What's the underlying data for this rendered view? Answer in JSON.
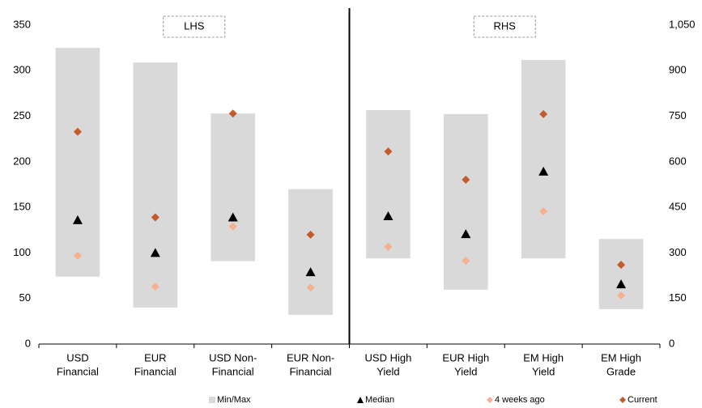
{
  "chart_data": {
    "type": "range",
    "ylim": [
      0,
      350
    ],
    "yticks": [
      0,
      50,
      100,
      150,
      200,
      250,
      300,
      350
    ],
    "y2lim": [
      0,
      1050
    ],
    "y2ticks": [
      0,
      150,
      300,
      450,
      600,
      750,
      900,
      {
        "value": 1050,
        "label": "1,050"
      }
    ],
    "series": [
      {
        "name": "Min/Max",
        "color": "#d9d9d9",
        "shape": "bar"
      },
      {
        "name": "Median",
        "color": "#000000",
        "shape": "triangle"
      },
      {
        "name": "4 weeks ago",
        "color": "#f4b08f",
        "shape": "diamond"
      },
      {
        "name": "Current",
        "color": "#c55a2a",
        "shape": "diamond"
      }
    ],
    "panels": [
      {
        "label": "LHS",
        "axis": "y",
        "categories": [
          [
            "USD",
            "Financial"
          ],
          [
            "EUR",
            "Financial"
          ],
          [
            "USD Non-",
            "Financial"
          ],
          [
            "EUR Non-",
            "Financial"
          ]
        ],
        "low": [
          74,
          40,
          91,
          32
        ],
        "high": [
          325,
          309,
          253,
          170
        ],
        "median": [
          136,
          100,
          139,
          79
        ],
        "four_weeks_ago": [
          97,
          63,
          129,
          62
        ],
        "current": [
          233,
          139,
          253,
          120
        ]
      },
      {
        "label": "RHS",
        "axis": "y2",
        "categories": [
          [
            "USD High",
            "Yield"
          ],
          [
            "EUR High",
            "Yield"
          ],
          [
            "EM High",
            "Yield"
          ],
          [
            "EM High",
            "Grade"
          ]
        ],
        "low": [
          282,
          179,
          282,
          115
        ],
        "high": [
          770,
          757,
          935,
          346
        ],
        "median": [
          421,
          362,
          568,
          197
        ],
        "four_weeks_ago": [
          320,
          274,
          437,
          160
        ],
        "current": [
          634,
          541,
          757,
          261
        ]
      }
    ]
  }
}
